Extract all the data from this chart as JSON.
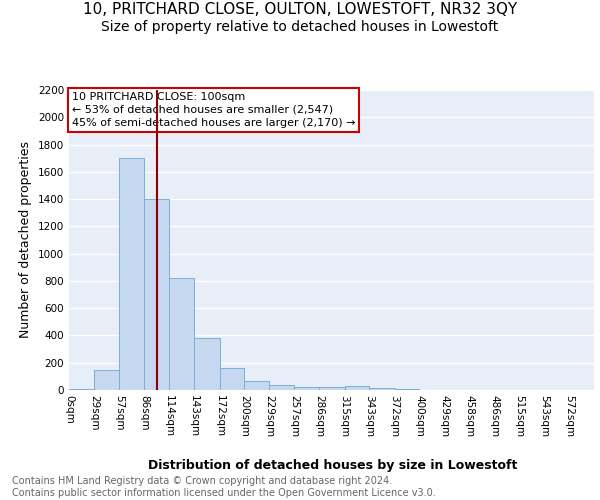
{
  "title": "10, PRITCHARD CLOSE, OULTON, LOWESTOFT, NR32 3QY",
  "subtitle": "Size of property relative to detached houses in Lowestoft",
  "xlabel": "Distribution of detached houses by size in Lowestoft",
  "ylabel": "Number of detached properties",
  "bin_labels": [
    "0sqm",
    "29sqm",
    "57sqm",
    "86sqm",
    "114sqm",
    "143sqm",
    "172sqm",
    "200sqm",
    "229sqm",
    "257sqm",
    "286sqm",
    "315sqm",
    "343sqm",
    "372sqm",
    "400sqm",
    "429sqm",
    "458sqm",
    "486sqm",
    "515sqm",
    "543sqm",
    "572sqm"
  ],
  "bin_edges": [
    0,
    29,
    57,
    86,
    114,
    143,
    172,
    200,
    229,
    257,
    286,
    315,
    343,
    372,
    400,
    429,
    458,
    486,
    515,
    543,
    572,
    600
  ],
  "bar_heights": [
    10,
    150,
    1700,
    1400,
    825,
    385,
    165,
    65,
    40,
    25,
    25,
    30,
    15,
    5,
    2,
    1,
    1,
    0,
    0,
    0,
    0
  ],
  "bar_color": "#c5d8f0",
  "bar_edge_color": "#7aafd4",
  "property_size": 100,
  "property_label": "10 PRITCHARD CLOSE: 100sqm",
  "annotation_line1": "← 53% of detached houses are smaller (2,547)",
  "annotation_line2": "45% of semi-detached houses are larger (2,170) →",
  "vline_color": "#8b0000",
  "annotation_box_color": "#ffffff",
  "annotation_box_edge": "#cc0000",
  "footer_line1": "Contains HM Land Registry data © Crown copyright and database right 2024.",
  "footer_line2": "Contains public sector information licensed under the Open Government Licence v3.0.",
  "ylim": [
    0,
    2200
  ],
  "title_fontsize": 11,
  "subtitle_fontsize": 10,
  "axis_label_fontsize": 9,
  "tick_fontsize": 7.5,
  "annotation_fontsize": 8,
  "footer_fontsize": 7,
  "background_color": "#e8eef8",
  "grid_color": "#d0d8e8"
}
